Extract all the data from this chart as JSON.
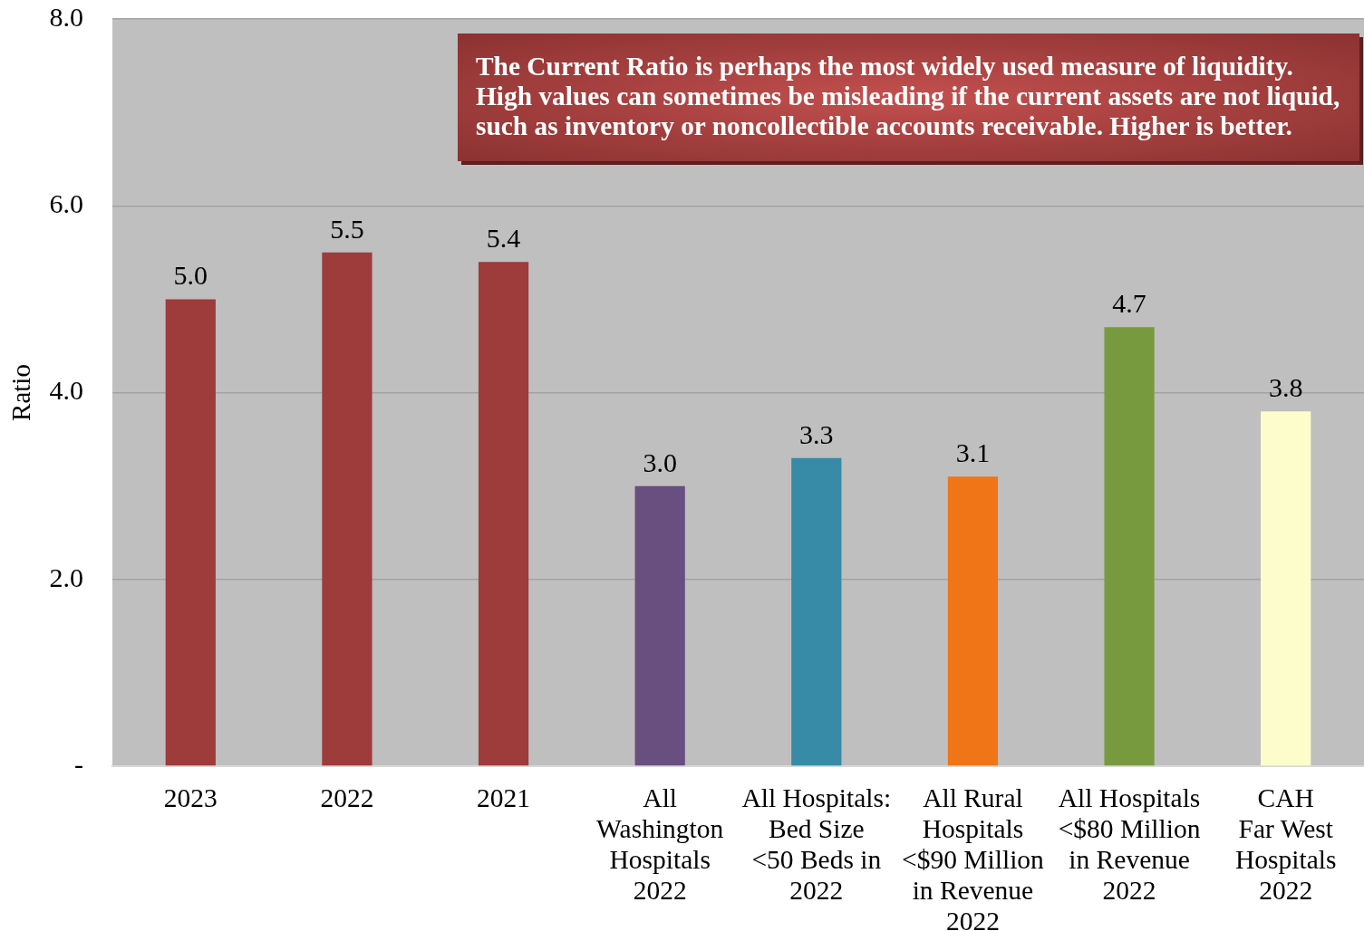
{
  "chart_data": {
    "type": "bar",
    "categories": [
      "2023",
      "2022",
      "2021",
      "All\nWashington\nHospitals\n2022",
      "All Hospitals:\nBed Size\n<50 Beds in\n2022",
      "All Rural\nHospitals\n<$90 Million\nin Revenue\n2022",
      "All Hospitals\n<$80 Million\nin Revenue\n2022",
      "CAH\nFar West\nHospitals\n2022"
    ],
    "values": [
      5.0,
      5.5,
      5.4,
      3.0,
      3.3,
      3.1,
      4.7,
      3.8
    ],
    "value_labels": [
      "5.0",
      "5.5",
      "5.4",
      "3.0",
      "3.3",
      "3.1",
      "4.7",
      "3.8"
    ],
    "colors": [
      "#9e3b3b",
      "#9e3b3b",
      "#9e3b3b",
      "#684f80",
      "#378ba6",
      "#f07516",
      "#789a3f",
      "#fdfdcc"
    ],
    "ylabel": "Ratio",
    "ylim": [
      0,
      8
    ],
    "yticks": [
      {
        "value": 0,
        "label": "-"
      },
      {
        "value": 2,
        "label": "2.0"
      },
      {
        "value": 4,
        "label": "4.0"
      },
      {
        "value": 6,
        "label": "6.0"
      },
      {
        "value": 8,
        "label": "8.0"
      }
    ],
    "grid": "y",
    "annotations": [
      "The Current Ratio is perhaps the most widely used measure of liquidity.\nHigh values can sometimes be misleading if the current assets are not liquid,\nsuch as inventory or noncollectible accounts receivable. Higher is better."
    ]
  }
}
